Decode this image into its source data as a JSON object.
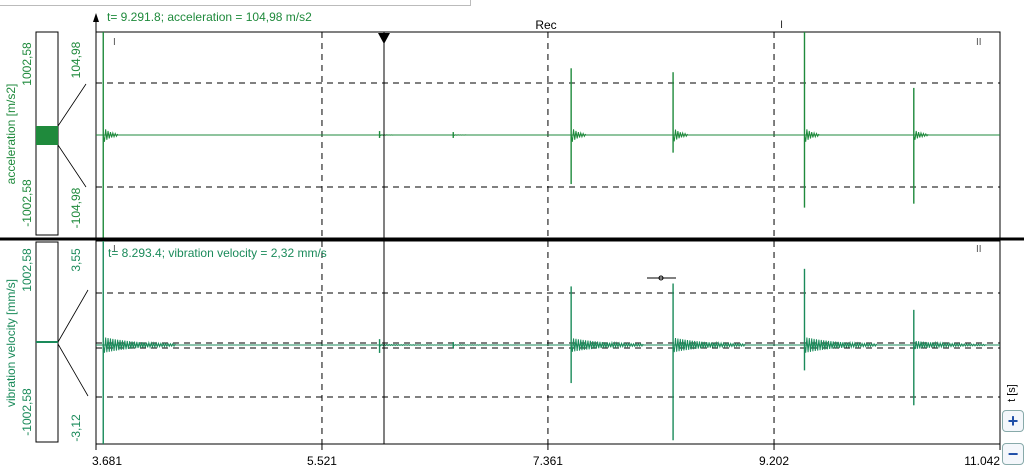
{
  "colors": {
    "series": "#1f8a3c",
    "series2": "#1a8a5a",
    "grid": "#000000",
    "separator": "#000000",
    "background": "#ffffff"
  },
  "top": {
    "cursor_readout": "t= 9.291.8; acceleration = 104,98 m/s2",
    "rec_label": "Rec",
    "ylabel": "acceleration [m/s2]",
    "scale_top": "1002,58",
    "scale_bottom": "-1002,58",
    "tick_top": "104,98",
    "tick_bottom": "-104,98"
  },
  "bottom": {
    "cursor_readout": "t= 8.293.4; vibration velocity = 2,32 mm/s",
    "ylabel": "vibration velocity [mm/s]",
    "scale_top": "1002,58",
    "scale_bottom": "-1002,58",
    "tick_top": "3,55",
    "tick_bottom": "-3,12"
  },
  "xaxis": {
    "unit_label": "t [s]",
    "ticks": [
      "3.681",
      "5.521",
      "7.361",
      "9.202",
      "11.042"
    ]
  },
  "buttons": {
    "zoom_in": "+",
    "zoom_out": "−"
  },
  "chart_data": [
    {
      "type": "line",
      "title": "",
      "xlabel": "t [s]",
      "ylabel": "acceleration [m/s2]",
      "xlim": [
        3.681,
        11.042
      ],
      "ylim": [
        -104.98,
        104.98
      ],
      "grid": true,
      "series": [
        {
          "name": "acceleration",
          "x": [
            3.74,
            5.99,
            6.59,
            7.55,
            8.38,
            9.45,
            10.34
          ],
          "values": [
            104.98,
            4,
            3,
            68,
            64,
            104.98,
            48
          ],
          "values_min": [
            -104.98,
            -3,
            -3,
            -50,
            -18,
            -74,
            -70
          ]
        }
      ]
    },
    {
      "type": "line",
      "title": "",
      "xlabel": "t [s]",
      "ylabel": "vibration velocity [mm/s]",
      "xlim": [
        3.681,
        11.042
      ],
      "ylim": [
        -3.12,
        3.55
      ],
      "grid": true,
      "series": [
        {
          "name": "vibration velocity",
          "x": [
            3.74,
            5.99,
            6.59,
            7.55,
            8.38,
            9.45,
            10.34
          ],
          "values": [
            3.55,
            0.2,
            0.1,
            2.0,
            2.1,
            2.6,
            1.2
          ],
          "values_min": [
            -3.12,
            -0.25,
            -0.1,
            -1.2,
            -3.0,
            -0.8,
            -1.9
          ]
        }
      ]
    }
  ]
}
